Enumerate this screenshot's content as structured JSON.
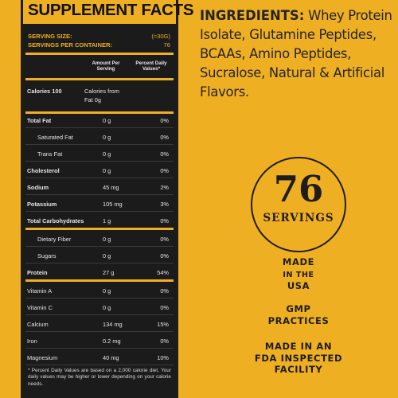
{
  "panel": {
    "title": "SUPPLEMENT FACTS",
    "serving_size_label": "SERVING SIZE:",
    "serving_size_value": "(≈30G)",
    "servings_per_container_label": "SERVINGS PER CONTAINER:",
    "servings_per_container_value": "76",
    "column_amount": "Amount Per Serving",
    "column_dv": "Percent Daily Values*",
    "calories_label": "Calories 100",
    "calories_from_fat_1": "Calories from",
    "calories_from_fat_2": "Fat 0g",
    "rows": [
      {
        "label": "Total Fat",
        "amount": "0 g",
        "dv": "0%"
      },
      {
        "label": "Saturated Fat",
        "amount": "0 g",
        "dv": "0%"
      },
      {
        "label": "Trans Fat",
        "amount": "0 g",
        "dv": "0%"
      },
      {
        "label": "Cholesterol",
        "amount": "0 g",
        "dv": "0%"
      },
      {
        "label": "Sodium",
        "amount": "45 mg",
        "dv": "2%"
      },
      {
        "label": "Potassium",
        "amount": "105 mg",
        "dv": "3%"
      },
      {
        "label": "Total Carbohydrates",
        "amount": "1 g",
        "dv": "0%"
      },
      {
        "label": "Dietary Fiber",
        "amount": "0 g",
        "dv": "0%"
      },
      {
        "label": "Sugars",
        "amount": "0 g",
        "dv": "0%"
      },
      {
        "label": "Protein",
        "amount": "27 g",
        "dv": "54%"
      },
      {
        "label": "Vitamin A",
        "amount": "0 g",
        "dv": "0%"
      },
      {
        "label": "Vitamin C",
        "amount": "0 g",
        "dv": "0%"
      },
      {
        "label": "Calcium",
        "amount": "134 mg",
        "dv": "15%"
      },
      {
        "label": "Iron",
        "amount": "0.2 mg",
        "dv": "0%"
      },
      {
        "label": "Magnesium",
        "amount": "40 mg",
        "dv": "10%"
      }
    ],
    "footnote": "* Percent Daily Values are based on a 2,000 calorie diet. Your daily values may be higher or lower depending on your calorie needs."
  },
  "ingredients": {
    "heading": "INGREDIENTS:",
    "text": "Whey Protein Isolate, Glutamine Peptides, BCAAs, Amino Peptides, Sucralose, Natural & Artificial Flavors."
  },
  "badge": {
    "number": "76",
    "label": "SERVINGS"
  },
  "claims": {
    "made_1": "MADE",
    "made_2": "IN THE",
    "made_3": "USA",
    "gmp_1": "GMP",
    "gmp_2": "PRACTICES",
    "fda_1": "MADE IN AN",
    "fda_2": "FDA INSPECTED",
    "fda_3": "FACILITY"
  },
  "colors": {
    "background": "#efaf22",
    "panel": "#1b1b1b",
    "text_dark": "#1d1d1d"
  }
}
